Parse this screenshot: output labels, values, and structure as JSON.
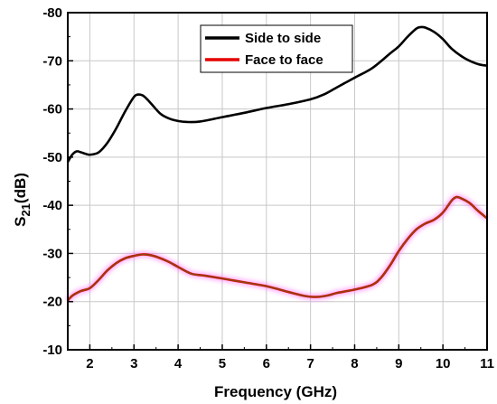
{
  "chart_data": {
    "type": "line",
    "title": "",
    "xlabel": "Frequency (GHz)",
    "ylabel_main": "S",
    "ylabel_sub": "21",
    "ylabel_unit": "(dB)",
    "xlim": [
      1.5,
      11
    ],
    "ylim": [
      -10,
      -80
    ],
    "x_ticks": [
      2,
      3,
      4,
      5,
      6,
      7,
      8,
      9,
      10,
      11
    ],
    "x_tick_labels": [
      "2",
      "3",
      "4",
      "5",
      "6",
      "7",
      "8",
      "9",
      "10",
      "11"
    ],
    "y_ticks": [
      -10,
      -20,
      -30,
      -40,
      -50,
      -60,
      -70,
      -80
    ],
    "y_tick_labels": [
      "-10",
      "-20",
      "-30",
      "-40",
      "-50",
      "-60",
      "-70",
      "-80"
    ],
    "grid": true,
    "legend_position": "top-center",
    "series": [
      {
        "name": "Side to side",
        "color": "#000000",
        "x": [
          1.5,
          1.6,
          1.7,
          1.8,
          1.9,
          2.0,
          2.2,
          2.4,
          2.6,
          2.8,
          3.0,
          3.1,
          3.2,
          3.3,
          3.4,
          3.6,
          3.8,
          4.0,
          4.2,
          4.5,
          5.0,
          5.5,
          6.0,
          6.5,
          7.0,
          7.3,
          7.6,
          8.0,
          8.4,
          8.8,
          9.0,
          9.2,
          9.4,
          9.5,
          9.6,
          9.8,
          10.0,
          10.2,
          10.5,
          10.8,
          11.0
        ],
        "y": [
          -49,
          -50.5,
          -51.2,
          -51,
          -50.7,
          -50.5,
          -51,
          -53,
          -56,
          -59.5,
          -62.5,
          -63,
          -62.8,
          -62,
          -61,
          -59,
          -58,
          -57.5,
          -57.3,
          -57.4,
          -58.3,
          -59.2,
          -60.2,
          -61,
          -62,
          -63,
          -64.5,
          -66.5,
          -68.5,
          -71.5,
          -73,
          -75,
          -76.7,
          -77,
          -76.9,
          -76,
          -74.5,
          -72.5,
          -70.5,
          -69.3,
          -69
        ]
      },
      {
        "name": "Face to face",
        "color": "#e60000",
        "x": [
          1.5,
          1.6,
          1.8,
          2.0,
          2.2,
          2.4,
          2.6,
          2.8,
          3.0,
          3.2,
          3.4,
          3.6,
          3.8,
          4.0,
          4.3,
          4.6,
          5.0,
          5.5,
          6.0,
          6.5,
          6.8,
          7.0,
          7.2,
          7.4,
          7.6,
          8.0,
          8.4,
          8.6,
          8.8,
          9.0,
          9.2,
          9.4,
          9.6,
          9.8,
          10.0,
          10.2,
          10.3,
          10.4,
          10.6,
          10.8,
          11.0
        ],
        "y": [
          -20.2,
          -21.2,
          -22.2,
          -22.8,
          -24.5,
          -26.5,
          -28,
          -29,
          -29.5,
          -29.8,
          -29.6,
          -29,
          -28.2,
          -27.2,
          -25.8,
          -25.4,
          -24.8,
          -24,
          -23.2,
          -22,
          -21.3,
          -21,
          -21,
          -21.3,
          -21.8,
          -22.5,
          -23.5,
          -25,
          -27.5,
          -30.5,
          -33,
          -35,
          -36.2,
          -37,
          -38.5,
          -41,
          -41.7,
          -41.5,
          -40.5,
          -38.8,
          -37.3
        ]
      }
    ]
  }
}
